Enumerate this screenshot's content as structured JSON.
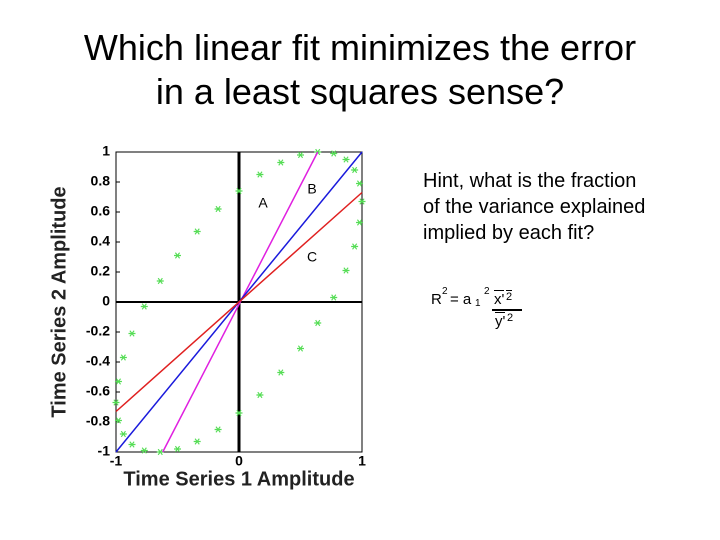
{
  "slide": {
    "title_lines": [
      "Which linear fit minimizes the error",
      "in a least squares sense?"
    ],
    "hint_lines": [
      "Hint, what is the fraction",
      "of the variance explained",
      "implied by each fit?"
    ],
    "formula": {
      "lhs": "R",
      "lhs_sup": "2",
      "eq": "= a",
      "sub": "1",
      "sup": "2",
      "numerator": "x'",
      "numerator_sup": "2",
      "denominator": "y'",
      "denominator_sup": "2"
    }
  },
  "chart_data": {
    "type": "scatter",
    "x_label": "Time Series 1 Amplitude",
    "y_label": "Time Series 2 Amplitude",
    "xlim": [
      -1,
      1
    ],
    "ylim": [
      -1,
      1
    ],
    "xticks": [
      -1,
      0,
      1
    ],
    "yticks": [
      -1,
      -0.8,
      -0.6,
      -0.4,
      -0.2,
      0,
      0.2,
      0.4,
      0.6,
      0.8,
      1
    ],
    "series": [
      {
        "color": "#55dd55",
        "style": "markers",
        "x": [
          0,
          0.17,
          0.34,
          0.5,
          0.64,
          0.77,
          0.87,
          0.94,
          0.98,
          1.0,
          0.98,
          0.94,
          0.87,
          0.77,
          0.64,
          0.5,
          0.34,
          0.17,
          0,
          -0.17,
          -0.34,
          -0.5,
          -0.64,
          -0.77,
          -0.87,
          -0.94,
          -0.98,
          -1.0,
          -0.98,
          -0.94,
          -0.87,
          -0.77,
          -0.64,
          -0.5,
          -0.34,
          -0.17
        ],
        "values": [
          0.74,
          0.85,
          0.93,
          0.98,
          1.0,
          0.99,
          0.95,
          0.88,
          0.79,
          0.67,
          0.53,
          0.37,
          0.21,
          0.03,
          -0.14,
          -0.31,
          -0.47,
          -0.62,
          -0.74,
          -0.85,
          -0.93,
          -0.98,
          -1.0,
          -0.99,
          -0.95,
          -0.88,
          -0.79,
          -0.67,
          -0.53,
          -0.37,
          -0.21,
          -0.03,
          0.14,
          0.31,
          0.47,
          0.62
        ]
      },
      {
        "name": "A",
        "color": "#e020e0",
        "style": "line",
        "x": [
          -0.62,
          0.64
        ],
        "values": [
          -1,
          1
        ]
      },
      {
        "name": "B",
        "color": "#1a1adc",
        "style": "line",
        "x": [
          -1,
          1
        ],
        "values": [
          -1,
          1
        ]
      },
      {
        "name": "C",
        "color": "#e02020",
        "style": "line",
        "x": [
          -1,
          1
        ],
        "values": [
          -0.73,
          0.73
        ]
      }
    ],
    "zero_lines": true
  }
}
